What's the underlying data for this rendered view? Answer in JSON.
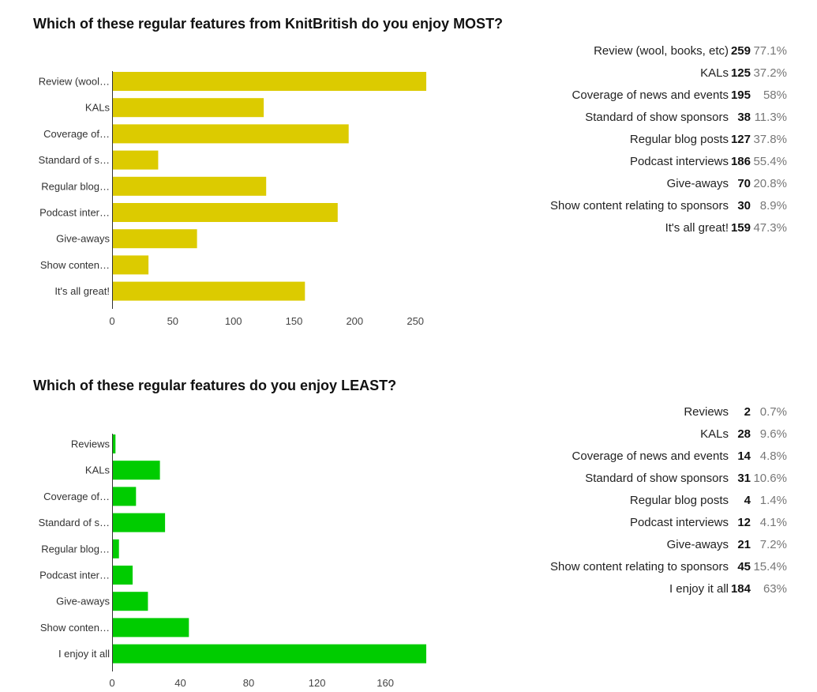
{
  "chart_data": [
    {
      "type": "bar",
      "title": "Which of these regular features from KnitBritish do you enjoy MOST?",
      "categories": [
        "Review (wool…",
        "KALs",
        "Coverage of…",
        "Standard of s…",
        "Regular blog…",
        "Podcast inter…",
        "Give-aways",
        "Show conten…",
        "It's all great!"
      ],
      "values": [
        259,
        125,
        195,
        38,
        127,
        186,
        70,
        30,
        159
      ],
      "xlim": [
        0,
        259
      ],
      "xticks": [
        "0",
        "50",
        "100",
        "150",
        "200",
        "250"
      ],
      "color": "#dccb00",
      "summary": [
        {
          "label": "Review (wool, books, etc)",
          "count": "259",
          "percent": "77.1%"
        },
        {
          "label": "KALs",
          "count": "125",
          "percent": "37.2%"
        },
        {
          "label": "Coverage of news and events",
          "count": "195",
          "percent": "58%"
        },
        {
          "label": "Standard of show sponsors",
          "count": "38",
          "percent": "11.3%"
        },
        {
          "label": "Regular blog posts",
          "count": "127",
          "percent": "37.8%"
        },
        {
          "label": "Podcast interviews",
          "count": "186",
          "percent": "55.4%"
        },
        {
          "label": "Give-aways",
          "count": "70",
          "percent": "20.8%"
        },
        {
          "label": "Show content relating to sponsors",
          "count": "30",
          "percent": "8.9%"
        },
        {
          "label": "It's all great!",
          "count": "159",
          "percent": "47.3%"
        }
      ]
    },
    {
      "type": "bar",
      "title": "Which of these regular features do you enjoy LEAST?",
      "categories": [
        "Reviews",
        "KALs",
        "Coverage of…",
        "Standard of s…",
        "Regular blog…",
        "Podcast inter…",
        "Give-aways",
        "Show conten…",
        "I enjoy it all"
      ],
      "values": [
        2,
        28,
        14,
        31,
        4,
        12,
        21,
        45,
        184
      ],
      "xlim": [
        0,
        184
      ],
      "xticks": [
        "0",
        "40",
        "80",
        "120",
        "160"
      ],
      "color": "#00cc00",
      "summary": [
        {
          "label": "Reviews",
          "count": "2",
          "percent": "0.7%"
        },
        {
          "label": "KALs",
          "count": "28",
          "percent": "9.6%"
        },
        {
          "label": "Coverage of news and events",
          "count": "14",
          "percent": "4.8%"
        },
        {
          "label": "Standard of show sponsors",
          "count": "31",
          "percent": "10.6%"
        },
        {
          "label": "Regular blog posts",
          "count": "4",
          "percent": "1.4%"
        },
        {
          "label": "Podcast interviews",
          "count": "12",
          "percent": "4.1%"
        },
        {
          "label": "Give-aways",
          "count": "21",
          "percent": "7.2%"
        },
        {
          "label": "Show content relating to sponsors",
          "count": "45",
          "percent": "15.4%"
        },
        {
          "label": "I enjoy it all",
          "count": "184",
          "percent": "63%"
        }
      ]
    }
  ]
}
